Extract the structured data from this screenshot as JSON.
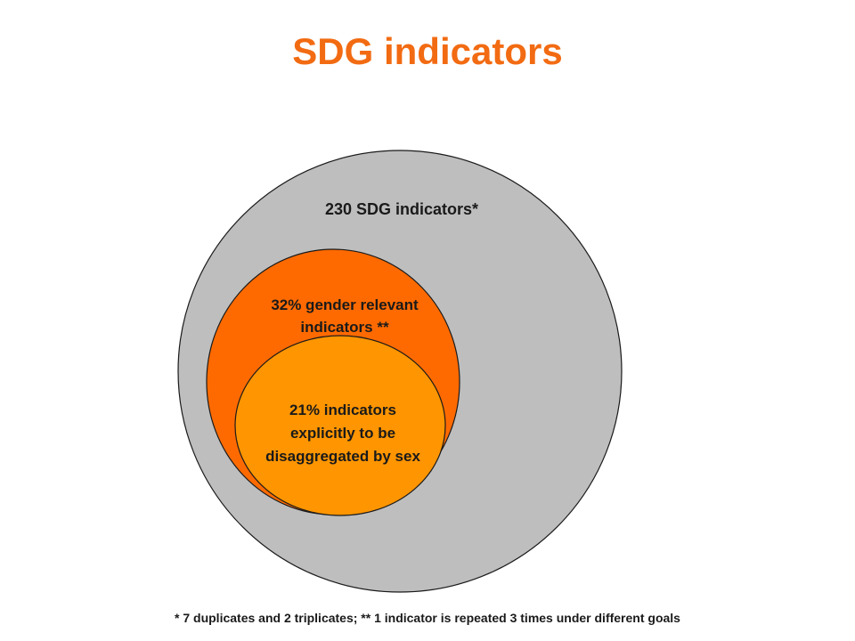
{
  "title": "SDG indicators",
  "colors": {
    "title": "#f26b12",
    "outer_circle": "#bebebe",
    "middle_circle": "#ff6a00",
    "inner_circle": "#ff9500",
    "stroke": "#1a1a1a"
  },
  "circles": {
    "outer": {
      "label": "230 SDG indicators*"
    },
    "middle": {
      "label_line1": "32% gender relevant",
      "label_line2": "indicators **"
    },
    "inner": {
      "label_line1": "21% indicators",
      "label_line2": "explicitly to be",
      "label_line3": "disaggregated by sex"
    }
  },
  "footnote": "* 7 duplicates and 2 triplicates; ** 1 indicator is repeated 3 times under different goals"
}
